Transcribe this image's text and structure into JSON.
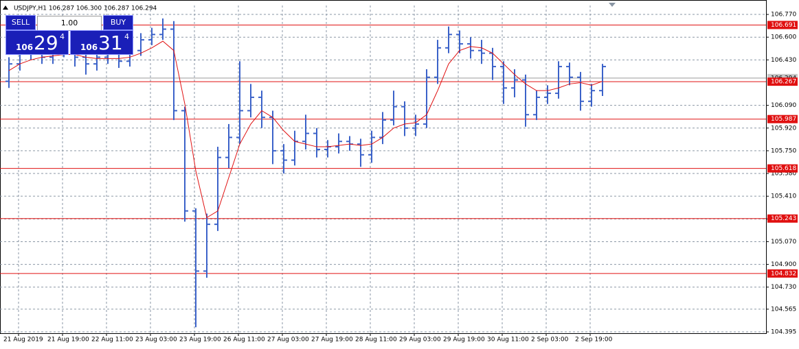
{
  "chart_data": {
    "type": "ohlc",
    "title": "USDJPY,H1  106.287 106.300 106.287 106.294",
    "categories": [
      "21 Aug 2019",
      null,
      null,
      null,
      "21 Aug 19:00",
      null,
      null,
      null,
      "22 Aug 11:00",
      null,
      null,
      null,
      "23 Aug 03:00",
      null,
      null,
      null,
      "23 Aug 19:00",
      null,
      null,
      null,
      "26 Aug 11:00",
      null,
      null,
      null,
      "27 Aug 03:00",
      null,
      null,
      null,
      "27 Aug 19:00",
      null,
      null,
      null,
      "28 Aug 11:00",
      null,
      null,
      null,
      "29 Aug 03:00",
      null,
      null,
      null,
      "29 Aug 19:00",
      null,
      null,
      null,
      "30 Aug 11:00",
      null,
      null,
      null,
      "2 Sep 03:00",
      null,
      null,
      null,
      "2 Sep 19:00",
      null,
      null
    ],
    "open": [
      106.27,
      106.4,
      106.48,
      106.5,
      106.45,
      106.52,
      106.5,
      106.45,
      106.4,
      106.45,
      106.48,
      106.42,
      106.5,
      106.58,
      106.62,
      106.66,
      106.05,
      105.3,
      104.85,
      105.2,
      105.7,
      105.85,
      106.05,
      106.15,
      106.0,
      105.75,
      105.68,
      105.82,
      105.88,
      105.76,
      105.78,
      105.82,
      105.8,
      105.72,
      105.85,
      105.98,
      106.08,
      105.92,
      105.95,
      106.3,
      106.52,
      106.62,
      106.55,
      106.5,
      106.48,
      106.38,
      106.22,
      106.28,
      106.02,
      106.15,
      106.18,
      106.38,
      106.3,
      106.12,
      106.2
    ],
    "high": [
      106.45,
      106.53,
      106.56,
      106.55,
      106.57,
      106.57,
      106.55,
      106.5,
      106.52,
      106.55,
      106.52,
      106.55,
      106.63,
      106.67,
      106.74,
      106.72,
      106.08,
      105.32,
      105.28,
      105.78,
      105.95,
      106.42,
      106.25,
      106.2,
      106.05,
      105.8,
      105.9,
      106.02,
      105.92,
      105.83,
      105.88,
      105.86,
      105.84,
      105.9,
      106.04,
      106.2,
      106.12,
      106.02,
      106.36,
      106.58,
      106.68,
      106.65,
      106.6,
      106.58,
      106.52,
      106.42,
      106.36,
      106.32,
      106.2,
      106.24,
      106.42,
      106.41,
      106.34,
      106.25,
      106.4
    ],
    "low": [
      106.22,
      106.35,
      106.43,
      106.4,
      106.4,
      106.45,
      106.38,
      106.32,
      106.35,
      106.4,
      106.37,
      106.38,
      106.46,
      106.54,
      106.58,
      105.98,
      105.22,
      104.43,
      104.8,
      105.15,
      105.62,
      105.8,
      106.0,
      105.92,
      105.65,
      105.58,
      105.64,
      105.76,
      105.7,
      105.7,
      105.73,
      105.75,
      105.63,
      105.66,
      105.8,
      105.94,
      105.86,
      105.86,
      105.92,
      106.25,
      106.48,
      106.48,
      106.44,
      106.4,
      106.28,
      106.1,
      106.15,
      105.93,
      105.98,
      106.1,
      106.14,
      106.24,
      106.05,
      106.08,
      106.16
    ],
    "close": [
      106.4,
      106.48,
      106.5,
      106.45,
      106.52,
      106.5,
      106.45,
      106.4,
      106.45,
      106.48,
      106.42,
      106.5,
      106.58,
      106.62,
      106.66,
      106.05,
      105.3,
      104.85,
      105.2,
      105.7,
      105.85,
      106.05,
      106.15,
      106.0,
      105.75,
      105.68,
      105.82,
      105.88,
      105.76,
      105.78,
      105.82,
      105.8,
      105.72,
      105.85,
      105.98,
      106.08,
      105.92,
      105.95,
      106.3,
      106.52,
      106.62,
      106.55,
      106.5,
      106.48,
      106.38,
      106.22,
      106.28,
      106.02,
      106.15,
      106.18,
      106.38,
      106.3,
      106.12,
      106.2,
      106.38
    ],
    "color": "#3b62c9",
    "ma": [
      106.35,
      106.4,
      106.43,
      106.45,
      106.46,
      106.47,
      106.47,
      106.45,
      106.44,
      106.44,
      106.44,
      106.45,
      106.48,
      106.52,
      106.57,
      106.5,
      106.1,
      105.6,
      105.25,
      105.3,
      105.55,
      105.8,
      105.95,
      106.05,
      106.0,
      105.9,
      105.82,
      105.8,
      105.78,
      105.78,
      105.79,
      105.8,
      105.79,
      105.8,
      105.85,
      105.92,
      105.95,
      105.96,
      106.02,
      106.2,
      106.4,
      106.5,
      106.53,
      106.52,
      106.48,
      106.4,
      106.32,
      106.25,
      106.2,
      106.2,
      106.22,
      106.25,
      106.26,
      106.24,
      106.27
    ],
    "ma_color": "#e01010",
    "levels": [
      106.691,
      106.267,
      105.987,
      105.618,
      105.243,
      104.832
    ],
    "level_color": "#e01010",
    "price_line": 106.294,
    "ylim": [
      104.385,
      106.837
    ],
    "yticks": [
      {
        "value": 106.77,
        "label": "106.770"
      },
      {
        "value": 106.6,
        "label": "106.600"
      },
      {
        "value": 106.43,
        "label": "106.430"
      },
      {
        "value": 106.09,
        "label": "106.090"
      },
      {
        "value": 105.92,
        "label": "105.920"
      },
      {
        "value": 105.75,
        "label": "105.750"
      },
      {
        "value": 105.58,
        "label": "105.580"
      },
      {
        "value": 105.41,
        "label": "105.410"
      },
      {
        "value": 105.24,
        "label": "105.240"
      },
      {
        "value": 105.07,
        "label": "105.070"
      },
      {
        "value": 104.9,
        "label": "104.900"
      },
      {
        "value": 104.73,
        "label": "104.730"
      },
      104.565,
      104.395
    ],
    "grid": true
  },
  "trade_panel": {
    "sell": "SELL",
    "lot": "1.00",
    "buy": "BUY",
    "sell_big": "106",
    "sell_pips": "29",
    "sell_frac": "4",
    "buy_big": "106",
    "buy_pips": "31",
    "buy_frac": "4"
  }
}
